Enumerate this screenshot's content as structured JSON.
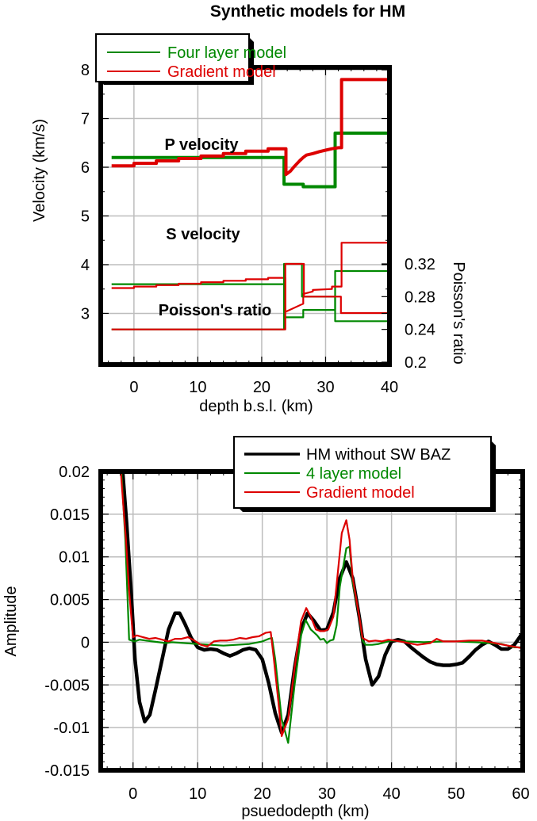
{
  "chart_data": [
    {
      "type": "line",
      "title": "Synthetic models for HM",
      "xlabel": "depth b.s.l. (km)",
      "ylabel": "Velocity (km/s)",
      "ylabel_right": "Poisson's ratio",
      "xlim": [
        -5.2,
        40
      ],
      "ylim": [
        1.95,
        8.05
      ],
      "ylim_right": [
        0.2,
        0.38
      ],
      "grid": true,
      "x_ticks": [
        0,
        10,
        20,
        30,
        40
      ],
      "x_tick_labels": [
        "0",
        "10",
        "20",
        "30",
        "40"
      ],
      "y_ticks": [
        3,
        4,
        5,
        6,
        7,
        8
      ],
      "y_tick_labels": [
        "3",
        "4",
        "5",
        "6",
        "7",
        "8"
      ],
      "y_ticks_right": [
        0.2,
        0.24,
        0.28,
        0.32
      ],
      "y_tick_labels_right": [
        "0.2",
        "0.24",
        "0.28",
        "0.32"
      ],
      "legend": {
        "placement": "top-left",
        "entries": [
          {
            "label": "Four layer model",
            "color": "#008800"
          },
          {
            "label": "Gradient model",
            "color": "#dd0000"
          }
        ]
      },
      "annotations": [
        "P velocity",
        "S velocity",
        "Poisson's ratio"
      ],
      "series": [
        {
          "name": "Four layer model - P velocity",
          "axis": "left",
          "color": "#008800",
          "bold": true,
          "x": [
            -3.5,
            23.5,
            23.5,
            26.5,
            26.5,
            31.5,
            31.5,
            40
          ],
          "y": [
            6.2,
            6.2,
            5.65,
            5.65,
            5.6,
            5.6,
            6.7,
            6.7
          ]
        },
        {
          "name": "Gradient model - P velocity",
          "axis": "left",
          "color": "#dd0000",
          "bold": true,
          "x": [
            -3.5,
            0,
            0,
            3.5,
            3.5,
            7,
            7,
            10.5,
            10.5,
            14,
            14,
            17.5,
            17.5,
            21,
            21,
            23.8,
            23.8,
            24.5,
            25,
            25.5,
            26,
            26.5,
            27,
            28,
            29,
            30,
            31,
            32,
            32.5,
            32.5,
            40
          ],
          "y": [
            6.03,
            6.03,
            6.08,
            6.08,
            6.13,
            6.13,
            6.18,
            6.18,
            6.23,
            6.23,
            6.28,
            6.28,
            6.33,
            6.33,
            6.38,
            6.38,
            5.85,
            5.92,
            6.0,
            6.07,
            6.14,
            6.2,
            6.25,
            6.28,
            6.32,
            6.35,
            6.38,
            6.4,
            6.4,
            7.8,
            7.8
          ]
        },
        {
          "name": "Four layer model - S velocity",
          "axis": "left",
          "color": "#008800",
          "bold": false,
          "x": [
            -3.5,
            23.5,
            23.5,
            26.5,
            26.5,
            31.5,
            31.5,
            40
          ],
          "y": [
            3.6,
            3.6,
            2.92,
            2.92,
            3.07,
            3.07,
            3.87,
            3.87
          ]
        },
        {
          "name": "Gradient model - S velocity",
          "axis": "left",
          "color": "#dd0000",
          "bold": false,
          "x": [
            -3.5,
            0,
            0,
            3.5,
            3.5,
            7,
            7,
            10.5,
            10.5,
            14,
            14,
            17.5,
            17.5,
            21,
            21,
            23.7,
            23.7,
            26.5,
            26.5,
            28,
            28,
            31,
            31,
            32.5,
            32.5,
            40
          ],
          "y": [
            3.52,
            3.52,
            3.55,
            3.55,
            3.58,
            3.58,
            3.61,
            3.61,
            3.64,
            3.64,
            3.67,
            3.67,
            3.7,
            3.7,
            3.73,
            3.73,
            3.03,
            3.2,
            3.4,
            3.45,
            3.48,
            3.5,
            3.55,
            3.55,
            4.45,
            4.45
          ]
        },
        {
          "name": "Four layer model - Poisson's ratio",
          "axis": "right",
          "color": "#008800",
          "bold": false,
          "x": [
            -3.5,
            23.5,
            23.5,
            26.3,
            26.3,
            31.5,
            31.5,
            40
          ],
          "y": [
            0.24,
            0.24,
            0.32,
            0.32,
            0.28,
            0.28,
            0.25,
            0.25
          ]
        },
        {
          "name": "Gradient model - Poisson's ratio",
          "axis": "right",
          "color": "#dd0000",
          "bold": false,
          "x": [
            -3.5,
            23.7,
            23.7,
            26.6,
            26.6,
            32.4,
            32.4,
            40
          ],
          "y": [
            0.24,
            0.24,
            0.32,
            0.32,
            0.28,
            0.28,
            0.26,
            0.26
          ]
        }
      ]
    },
    {
      "type": "line",
      "title": "",
      "xlabel": "psuedodepth (km)",
      "ylabel": "Amplitude",
      "xlim": [
        -5,
        60.3
      ],
      "ylim": [
        -0.015,
        0.02
      ],
      "grid": true,
      "x_ticks": [
        0,
        10,
        20,
        30,
        40,
        50,
        60
      ],
      "x_tick_labels": [
        "0",
        "10",
        "20",
        "30",
        "40",
        "50",
        "60"
      ],
      "y_ticks": [
        -0.015,
        -0.01,
        -0.005,
        0,
        0.005,
        0.01,
        0.015,
        0.02
      ],
      "y_tick_labels": [
        "-0.015",
        "-0.01",
        "-0.005",
        "0",
        "0.005",
        "0.01",
        "0.015",
        "0.02"
      ],
      "legend": {
        "placement": "top-right",
        "entries": [
          {
            "label": "HM without SW BAZ",
            "color": "#000000"
          },
          {
            "label": "4 layer model",
            "color": "#008800"
          },
          {
            "label": "Gradient model",
            "color": "#dd0000"
          }
        ]
      },
      "series": [
        {
          "name": "HM without SW BAZ",
          "color": "#000000",
          "bold": true,
          "x": [
            -1.6,
            -1,
            -0.3,
            0.3,
            1,
            1.8,
            2.6,
            3.5,
            4.5,
            5.5,
            6.5,
            7.2,
            8,
            9,
            10,
            11,
            12,
            13,
            14,
            15,
            16,
            17,
            18,
            19,
            20,
            21,
            22,
            23,
            24,
            25,
            26,
            27,
            28,
            29,
            30,
            31,
            32,
            33,
            34,
            35,
            36,
            37,
            38,
            39,
            40,
            41,
            42,
            43,
            44,
            45,
            46,
            47,
            48,
            49,
            50,
            51,
            52,
            53,
            54,
            55,
            56,
            57,
            58,
            59,
            60.3
          ],
          "y": [
            0.02,
            0.014,
            0.006,
            -0.002,
            -0.007,
            -0.0093,
            -0.0085,
            -0.0055,
            -0.002,
            0.0015,
            0.0034,
            0.0034,
            0.0022,
            0.0005,
            -0.0006,
            -0.0009,
            -0.0008,
            -0.0009,
            -0.0013,
            -0.0016,
            -0.0013,
            -0.0009,
            -0.0007,
            -0.0009,
            -0.002,
            -0.0048,
            -0.0083,
            -0.0106,
            -0.0085,
            -0.003,
            0.0015,
            0.0034,
            0.0025,
            0.0014,
            0.0015,
            0.0035,
            0.0075,
            0.0094,
            0.0075,
            0.003,
            -0.002,
            -0.005,
            -0.004,
            -0.0015,
            0.0001,
            0.0003,
            0.0001,
            -0.0006,
            -0.0012,
            -0.0018,
            -0.0023,
            -0.0026,
            -0.0027,
            -0.0027,
            -0.0026,
            -0.0024,
            -0.0017,
            -0.0009,
            -0.0003,
            0.0001,
            -0.0003,
            -0.0008,
            -0.0008,
            -0.0003,
            0.0011
          ]
        },
        {
          "name": "4 layer model",
          "color": "#008800",
          "bold": false,
          "x": [
            -1.8,
            -1.2,
            -0.6,
            0.2,
            1,
            2,
            3,
            4,
            5,
            6,
            8,
            10,
            12,
            14,
            16,
            18,
            20,
            21,
            21.5,
            22,
            23,
            24,
            25,
            26,
            26.7,
            27.5,
            28.5,
            29,
            29.5,
            30,
            30.5,
            31,
            31.5,
            32,
            33,
            33.5,
            34,
            35,
            35.5,
            36,
            37,
            38,
            40,
            42,
            45,
            48,
            50,
            53,
            55,
            57,
            59,
            60.3
          ],
          "y": [
            0.02,
            0.012,
            0.0003,
            0.0001,
            0.0003,
            0.0002,
            0.0001,
            0,
            -0.0001,
            0,
            -0.0001,
            -0.0002,
            -0.0003,
            -0.0004,
            -0.0003,
            -0.0002,
            0.0001,
            0.0004,
            0.0005,
            -0.002,
            -0.009,
            -0.0118,
            -0.005,
            0.0008,
            0.0026,
            0.0015,
            0.0008,
            0.0003,
            0.0004,
            -0.0001,
            0.0002,
            0.0003,
            0.002,
            0.0065,
            0.011,
            0.0112,
            0.007,
            0.003,
            0.0002,
            -0.0003,
            -0.0003,
            -0.0002,
            0.0002,
            0.0001,
            0,
            0.0001,
            0.0001,
            0,
            -0.0001,
            -0.0002,
            -0.0006,
            -0.0006
          ]
        },
        {
          "name": "Gradient model",
          "color": "#dd0000",
          "bold": false,
          "x": [
            -1.9,
            -1.4,
            -1.1,
            -0.6,
            0,
            0.6,
            1.5,
            2.5,
            3.5,
            4.5,
            5.5,
            6.5,
            7.5,
            8.5,
            9.5,
            10.5,
            11.5,
            12.5,
            13.5,
            14.5,
            15.5,
            16.5,
            17.5,
            18.5,
            19.5,
            20.5,
            21.3,
            21.8,
            22.5,
            23,
            24,
            25,
            26,
            26.8,
            27.5,
            28.3,
            29,
            29.6,
            30.2,
            31,
            31.6,
            32.3,
            33,
            33.5,
            34,
            35,
            35.5,
            36.5,
            37.5,
            38.5,
            39.5,
            40.5,
            42,
            44,
            46,
            47,
            48,
            50,
            52,
            54,
            56,
            58,
            60.3
          ],
          "y": [
            0.02,
            0.015,
            0.012,
            0.006,
            0.0006,
            0.0008,
            0.0006,
            0.0004,
            0.0005,
            0.0003,
            0.0001,
            0.0004,
            0.0004,
            0.0006,
            0.0002,
            -0.0003,
            -0.0005,
            0.0001,
            0.0002,
            0.0002,
            0.0003,
            0.0005,
            0.0004,
            0.0006,
            0.0007,
            0.0011,
            0.0012,
            -0.002,
            -0.007,
            -0.011,
            -0.009,
            -0.003,
            0.0025,
            0.004,
            0.003,
            0.0015,
            0.0013,
            0.0013,
            0.0015,
            0.003,
            0.0075,
            0.0128,
            0.0143,
            0.012,
            0.0075,
            0.003,
            0.0005,
            0.0001,
            0.0002,
            0.0001,
            0.0003,
            0.0002,
            0.0,
            -0.0003,
            -0.0001,
            0.0004,
            0.0001,
            0.0001,
            0.0002,
            0.0002,
            -0.0001,
            -0.0004,
            -0.0007
          ]
        }
      ]
    }
  ]
}
